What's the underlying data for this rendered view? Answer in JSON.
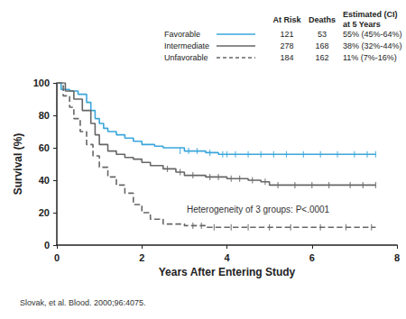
{
  "chart_data": {
    "type": "line",
    "y_label": "Survival (%)",
    "x_label": "Years After Entering Study",
    "annotation": "Heterogeneity of 3 groups: P<.0001",
    "source": "Slovak, et al. Blood. 2000;96:4075.",
    "xlim": [
      0,
      8
    ],
    "xticks": [
      0,
      2,
      4,
      6,
      8
    ],
    "ylim": [
      0,
      100
    ],
    "yticks": [
      0,
      20,
      40,
      60,
      80,
      100
    ],
    "grid": false,
    "table_header": [
      "At Risk",
      "Deaths",
      [
        "Estimated (CI)",
        "at 5 Years"
      ]
    ],
    "series": [
      {
        "name": "Favorable",
        "color": "#3aa6dc",
        "line_style": "solid",
        "at_risk": 121,
        "deaths": 53,
        "estimate_5y": "55% (45%-64%)",
        "x": [
          0,
          0.1,
          0.3,
          0.5,
          0.7,
          0.8,
          0.9,
          1.0,
          1.1,
          1.2,
          1.4,
          1.6,
          1.8,
          2.0,
          2.3,
          2.5,
          3.0,
          3.5,
          3.8,
          7.5
        ],
        "values": [
          100,
          96,
          95,
          93,
          88,
          83,
          78,
          75,
          72,
          70,
          68,
          66,
          64,
          62,
          61,
          60,
          58,
          57,
          56,
          56
        ],
        "censored": [
          [
            2.9,
            58
          ],
          [
            3.1,
            58
          ],
          [
            3.3,
            58
          ],
          [
            3.6,
            57
          ],
          [
            3.9,
            56
          ],
          [
            4.0,
            56
          ],
          [
            4.2,
            56
          ],
          [
            4.5,
            56
          ],
          [
            4.8,
            56
          ],
          [
            5.1,
            56
          ],
          [
            5.4,
            56
          ],
          [
            5.8,
            56
          ],
          [
            6.2,
            56
          ],
          [
            6.6,
            56
          ],
          [
            7.0,
            56
          ],
          [
            7.3,
            56
          ],
          [
            7.5,
            56
          ]
        ]
      },
      {
        "name": "Intermediate",
        "color": "#666666",
        "line_style": "solid",
        "at_risk": 278,
        "deaths": 168,
        "estimate_5y": "38% (32%-44%)",
        "x": [
          0,
          0.2,
          0.4,
          0.6,
          0.8,
          0.9,
          1.0,
          1.2,
          1.4,
          1.6,
          1.8,
          2.0,
          2.2,
          2.5,
          2.8,
          3.0,
          3.5,
          4.0,
          4.5,
          4.8,
          5.0,
          7.5
        ],
        "values": [
          100,
          95,
          90,
          83,
          75,
          68,
          62,
          58,
          56,
          54,
          53,
          51,
          49,
          47,
          45,
          43,
          42,
          41,
          40,
          39,
          37,
          37
        ],
        "censored": [
          [
            2.6,
            47
          ],
          [
            2.9,
            45
          ],
          [
            3.2,
            43
          ],
          [
            3.6,
            42
          ],
          [
            3.8,
            42
          ],
          [
            4.1,
            41
          ],
          [
            4.3,
            41
          ],
          [
            4.6,
            40
          ],
          [
            4.9,
            39
          ],
          [
            5.2,
            37
          ],
          [
            5.6,
            37
          ],
          [
            6.0,
            37
          ],
          [
            6.4,
            37
          ],
          [
            6.9,
            37
          ],
          [
            7.2,
            37
          ],
          [
            7.5,
            37
          ]
        ]
      },
      {
        "name": "Unfavorable",
        "color": "#666666",
        "line_style": "dashed",
        "at_risk": 184,
        "deaths": 162,
        "estimate_5y": "11% (7%-16%)",
        "x": [
          0,
          0.15,
          0.3,
          0.4,
          0.55,
          0.7,
          0.85,
          1.0,
          1.2,
          1.4,
          1.6,
          1.8,
          2.0,
          2.2,
          2.5,
          3.0,
          3.5,
          7.5
        ],
        "values": [
          100,
          92,
          85,
          78,
          70,
          62,
          55,
          48,
          42,
          37,
          32,
          25,
          20,
          16,
          13,
          12,
          11,
          11
        ],
        "censored": [
          [
            3.2,
            12
          ],
          [
            3.4,
            12
          ],
          [
            3.7,
            11
          ],
          [
            4.1,
            11
          ],
          [
            4.5,
            11
          ],
          [
            5.0,
            11
          ],
          [
            5.5,
            11
          ],
          [
            6.2,
            11
          ],
          [
            6.8,
            11
          ],
          [
            7.4,
            11
          ]
        ]
      }
    ]
  }
}
